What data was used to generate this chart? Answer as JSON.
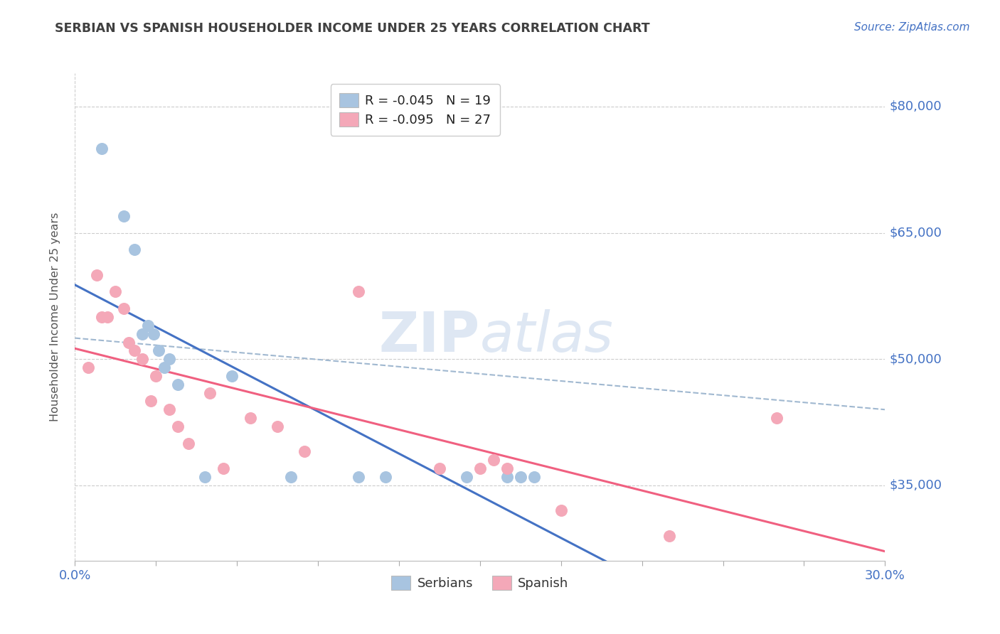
{
  "title": "SERBIAN VS SPANISH HOUSEHOLDER INCOME UNDER 25 YEARS CORRELATION CHART",
  "source": "Source: ZipAtlas.com",
  "ylabel": "Householder Income Under 25 years",
  "ytick_labels": [
    "$35,000",
    "$50,000",
    "$65,000",
    "$80,000"
  ],
  "ytick_values": [
    35000,
    50000,
    65000,
    80000
  ],
  "ymin": 26000,
  "ymax": 84000,
  "xmin": 0.0,
  "xmax": 30.0,
  "legend_serbian": "R = -0.045   N = 19",
  "legend_spanish": "R = -0.095   N = 27",
  "legend_bottom_serbian": "Serbians",
  "legend_bottom_spanish": "Spanish",
  "serbian_color": "#a8c4e0",
  "spanish_color": "#f4a8b8",
  "serbian_line_color": "#4472c4",
  "spanish_line_color": "#f06080",
  "dashed_line_color": "#a0b8d0",
  "title_color": "#404040",
  "source_color": "#4472c4",
  "ytick_color": "#4472c4",
  "background_color": "#ffffff",
  "serbian_x": [
    1.0,
    1.8,
    2.2,
    2.5,
    2.7,
    2.9,
    3.1,
    3.3,
    3.5,
    3.8,
    4.8,
    5.8,
    8.0,
    10.5,
    11.5,
    14.5,
    16.0,
    16.5,
    17.0
  ],
  "serbian_y": [
    75000,
    67000,
    63000,
    53000,
    54000,
    53000,
    51000,
    49000,
    50000,
    47000,
    36000,
    48000,
    36000,
    36000,
    36000,
    36000,
    36000,
    36000,
    36000
  ],
  "spanish_x": [
    0.5,
    0.8,
    1.0,
    1.2,
    1.5,
    1.8,
    2.0,
    2.2,
    2.5,
    2.8,
    3.0,
    3.5,
    3.8,
    4.2,
    5.0,
    5.5,
    6.5,
    7.5,
    8.5,
    10.5,
    13.5,
    15.0,
    15.5,
    16.0,
    18.0,
    22.0,
    26.0
  ],
  "spanish_y": [
    49000,
    60000,
    55000,
    55000,
    58000,
    56000,
    52000,
    51000,
    50000,
    45000,
    48000,
    44000,
    42000,
    40000,
    46000,
    37000,
    43000,
    42000,
    39000,
    58000,
    37000,
    37000,
    38000,
    37000,
    32000,
    29000,
    43000
  ],
  "xtick_positions": [
    0,
    3,
    6,
    9,
    12,
    15,
    18,
    21,
    24,
    27,
    30
  ]
}
